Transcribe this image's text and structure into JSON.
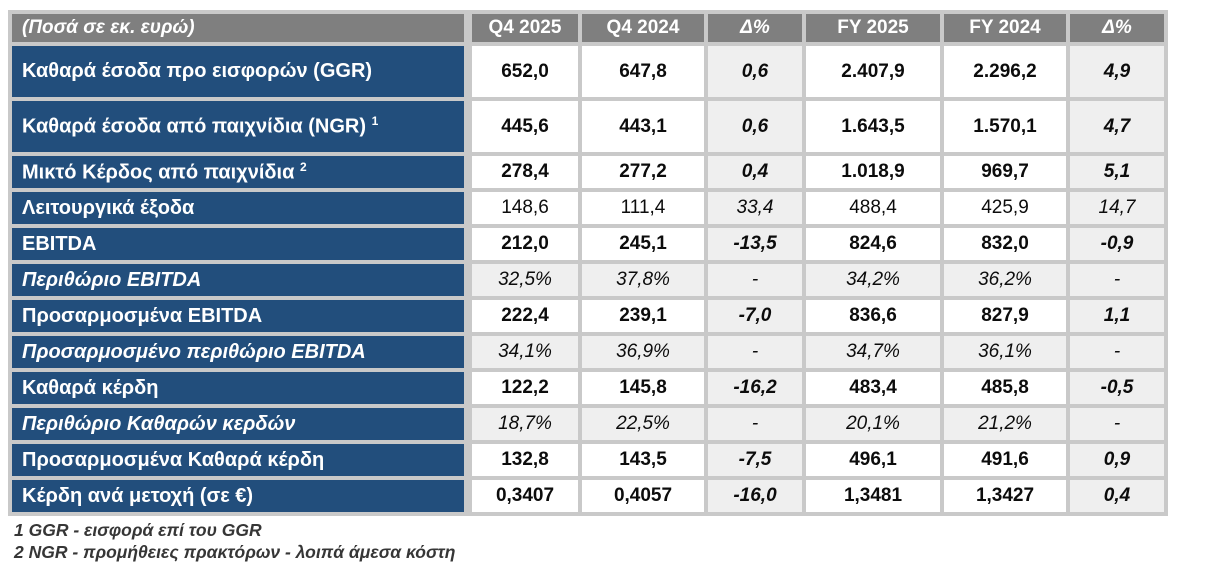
{
  "table": {
    "unit_label": "(Ποσά σε εκ. ευρώ)",
    "columns": [
      "Q4 2025",
      "Q4 2024",
      "Δ%",
      "FY 2025",
      "FY 2024",
      "Δ%"
    ],
    "rows": [
      {
        "label": "Καθαρά έσοδα προ εισφορών (GGR)",
        "sup": "",
        "style": "bold",
        "tall": true,
        "values": [
          "652,0",
          "647,8",
          "0,6",
          "2.407,9",
          "2.296,2",
          "4,9"
        ]
      },
      {
        "label": "Καθαρά έσοδα από παιχνίδια (NGR)",
        "sup": "1",
        "style": "bold",
        "tall": true,
        "values": [
          "445,6",
          "443,1",
          "0,6",
          "1.643,5",
          "1.570,1",
          "4,7"
        ]
      },
      {
        "label": "Μικτό Κέρδος από παιχνίδια",
        "sup": "2",
        "style": "bold",
        "tall": false,
        "values": [
          "278,4",
          "277,2",
          "0,4",
          "1.018,9",
          "969,7",
          "5,1"
        ]
      },
      {
        "label": "Λειτουργικά έξοδα",
        "sup": "",
        "style": "regular",
        "tall": false,
        "values": [
          "148,6",
          "111,4",
          "33,4",
          "488,4",
          "425,9",
          "14,7"
        ]
      },
      {
        "label": "EBITDA",
        "sup": "",
        "style": "bold",
        "tall": false,
        "values": [
          "212,0",
          "245,1",
          "-13,5",
          "824,6",
          "832,0",
          "-0,9"
        ]
      },
      {
        "label": "Περιθώριο EBITDA",
        "sup": "",
        "style": "margin",
        "tall": false,
        "values": [
          "32,5%",
          "37,8%",
          "-",
          "34,2%",
          "36,2%",
          "-"
        ]
      },
      {
        "label": "Προσαρμοσμένα EBITDA",
        "sup": "",
        "style": "bold",
        "tall": false,
        "values": [
          "222,4",
          "239,1",
          "-7,0",
          "836,6",
          "827,9",
          "1,1"
        ]
      },
      {
        "label": "Προσαρμοσμένο περιθώριο EBITDA",
        "sup": "",
        "style": "margin",
        "tall": false,
        "values": [
          "34,1%",
          "36,9%",
          "-",
          "34,7%",
          "36,1%",
          "-"
        ]
      },
      {
        "label": "Καθαρά κέρδη",
        "sup": "",
        "style": "bold",
        "tall": false,
        "values": [
          "122,2",
          "145,8",
          "-16,2",
          "483,4",
          "485,8",
          "-0,5"
        ]
      },
      {
        "label": "Περιθώριο Καθαρών κερδών",
        "sup": "",
        "style": "margin",
        "tall": false,
        "values": [
          "18,7%",
          "22,5%",
          "-",
          "20,1%",
          "21,2%",
          "-"
        ]
      },
      {
        "label": "Προσαρμοσμένα Καθαρά κέρδη",
        "sup": "",
        "style": "bold",
        "tall": false,
        "values": [
          "132,8",
          "143,5",
          "-7,5",
          "496,1",
          "491,6",
          "0,9"
        ]
      },
      {
        "label": "Κέρδη ανά μετοχή (σε €)",
        "sup": "",
        "style": "bold",
        "tall": false,
        "values": [
          "0,3407",
          "0,4057",
          "-16,0",
          "1,3481",
          "1,3427",
          "0,4"
        ]
      }
    ],
    "footnotes": [
      "1 GGR - εισφορά επί του GGR",
      "2 NGR - προμήθειες πρακτόρων - λοιπά άμεσα κόστη"
    ]
  },
  "colors": {
    "header_gray": "#7f7f7f",
    "label_blue": "#224e7c",
    "delta_gray": "#efefef",
    "grid_gap": "#c9c9c9",
    "cell_white": "#ffffff"
  }
}
